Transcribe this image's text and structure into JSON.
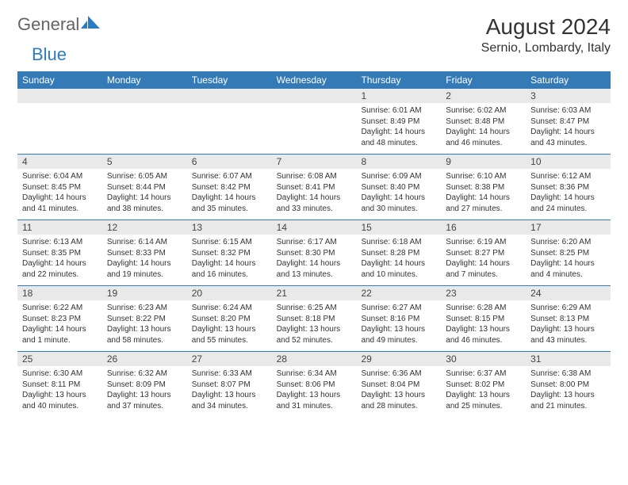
{
  "brand": {
    "word1": "General",
    "word2": "Blue"
  },
  "header": {
    "title": "August 2024",
    "location": "Sernio, Lombardy, Italy"
  },
  "colors": {
    "header_bg": "#337ab7",
    "header_text": "#ffffff",
    "daynum_bg": "#e9e9e9",
    "divider": "#2d7bc0",
    "brand_gray": "#646464",
    "brand_blue": "#2d7bc0"
  },
  "typography": {
    "title_fontsize": 28,
    "location_fontsize": 16,
    "dayheader_fontsize": 12,
    "daynum_fontsize": 12,
    "body_fontsize": 10
  },
  "day_headers": [
    "Sunday",
    "Monday",
    "Tuesday",
    "Wednesday",
    "Thursday",
    "Friday",
    "Saturday"
  ],
  "weeks": [
    [
      {
        "num": "",
        "sunrise": "",
        "sunset": "",
        "daylight": ""
      },
      {
        "num": "",
        "sunrise": "",
        "sunset": "",
        "daylight": ""
      },
      {
        "num": "",
        "sunrise": "",
        "sunset": "",
        "daylight": ""
      },
      {
        "num": "",
        "sunrise": "",
        "sunset": "",
        "daylight": ""
      },
      {
        "num": "1",
        "sunrise": "Sunrise: 6:01 AM",
        "sunset": "Sunset: 8:49 PM",
        "daylight": "Daylight: 14 hours and 48 minutes."
      },
      {
        "num": "2",
        "sunrise": "Sunrise: 6:02 AM",
        "sunset": "Sunset: 8:48 PM",
        "daylight": "Daylight: 14 hours and 46 minutes."
      },
      {
        "num": "3",
        "sunrise": "Sunrise: 6:03 AM",
        "sunset": "Sunset: 8:47 PM",
        "daylight": "Daylight: 14 hours and 43 minutes."
      }
    ],
    [
      {
        "num": "4",
        "sunrise": "Sunrise: 6:04 AM",
        "sunset": "Sunset: 8:45 PM",
        "daylight": "Daylight: 14 hours and 41 minutes."
      },
      {
        "num": "5",
        "sunrise": "Sunrise: 6:05 AM",
        "sunset": "Sunset: 8:44 PM",
        "daylight": "Daylight: 14 hours and 38 minutes."
      },
      {
        "num": "6",
        "sunrise": "Sunrise: 6:07 AM",
        "sunset": "Sunset: 8:42 PM",
        "daylight": "Daylight: 14 hours and 35 minutes."
      },
      {
        "num": "7",
        "sunrise": "Sunrise: 6:08 AM",
        "sunset": "Sunset: 8:41 PM",
        "daylight": "Daylight: 14 hours and 33 minutes."
      },
      {
        "num": "8",
        "sunrise": "Sunrise: 6:09 AM",
        "sunset": "Sunset: 8:40 PM",
        "daylight": "Daylight: 14 hours and 30 minutes."
      },
      {
        "num": "9",
        "sunrise": "Sunrise: 6:10 AM",
        "sunset": "Sunset: 8:38 PM",
        "daylight": "Daylight: 14 hours and 27 minutes."
      },
      {
        "num": "10",
        "sunrise": "Sunrise: 6:12 AM",
        "sunset": "Sunset: 8:36 PM",
        "daylight": "Daylight: 14 hours and 24 minutes."
      }
    ],
    [
      {
        "num": "11",
        "sunrise": "Sunrise: 6:13 AM",
        "sunset": "Sunset: 8:35 PM",
        "daylight": "Daylight: 14 hours and 22 minutes."
      },
      {
        "num": "12",
        "sunrise": "Sunrise: 6:14 AM",
        "sunset": "Sunset: 8:33 PM",
        "daylight": "Daylight: 14 hours and 19 minutes."
      },
      {
        "num": "13",
        "sunrise": "Sunrise: 6:15 AM",
        "sunset": "Sunset: 8:32 PM",
        "daylight": "Daylight: 14 hours and 16 minutes."
      },
      {
        "num": "14",
        "sunrise": "Sunrise: 6:17 AM",
        "sunset": "Sunset: 8:30 PM",
        "daylight": "Daylight: 14 hours and 13 minutes."
      },
      {
        "num": "15",
        "sunrise": "Sunrise: 6:18 AM",
        "sunset": "Sunset: 8:28 PM",
        "daylight": "Daylight: 14 hours and 10 minutes."
      },
      {
        "num": "16",
        "sunrise": "Sunrise: 6:19 AM",
        "sunset": "Sunset: 8:27 PM",
        "daylight": "Daylight: 14 hours and 7 minutes."
      },
      {
        "num": "17",
        "sunrise": "Sunrise: 6:20 AM",
        "sunset": "Sunset: 8:25 PM",
        "daylight": "Daylight: 14 hours and 4 minutes."
      }
    ],
    [
      {
        "num": "18",
        "sunrise": "Sunrise: 6:22 AM",
        "sunset": "Sunset: 8:23 PM",
        "daylight": "Daylight: 14 hours and 1 minute."
      },
      {
        "num": "19",
        "sunrise": "Sunrise: 6:23 AM",
        "sunset": "Sunset: 8:22 PM",
        "daylight": "Daylight: 13 hours and 58 minutes."
      },
      {
        "num": "20",
        "sunrise": "Sunrise: 6:24 AM",
        "sunset": "Sunset: 8:20 PM",
        "daylight": "Daylight: 13 hours and 55 minutes."
      },
      {
        "num": "21",
        "sunrise": "Sunrise: 6:25 AM",
        "sunset": "Sunset: 8:18 PM",
        "daylight": "Daylight: 13 hours and 52 minutes."
      },
      {
        "num": "22",
        "sunrise": "Sunrise: 6:27 AM",
        "sunset": "Sunset: 8:16 PM",
        "daylight": "Daylight: 13 hours and 49 minutes."
      },
      {
        "num": "23",
        "sunrise": "Sunrise: 6:28 AM",
        "sunset": "Sunset: 8:15 PM",
        "daylight": "Daylight: 13 hours and 46 minutes."
      },
      {
        "num": "24",
        "sunrise": "Sunrise: 6:29 AM",
        "sunset": "Sunset: 8:13 PM",
        "daylight": "Daylight: 13 hours and 43 minutes."
      }
    ],
    [
      {
        "num": "25",
        "sunrise": "Sunrise: 6:30 AM",
        "sunset": "Sunset: 8:11 PM",
        "daylight": "Daylight: 13 hours and 40 minutes."
      },
      {
        "num": "26",
        "sunrise": "Sunrise: 6:32 AM",
        "sunset": "Sunset: 8:09 PM",
        "daylight": "Daylight: 13 hours and 37 minutes."
      },
      {
        "num": "27",
        "sunrise": "Sunrise: 6:33 AM",
        "sunset": "Sunset: 8:07 PM",
        "daylight": "Daylight: 13 hours and 34 minutes."
      },
      {
        "num": "28",
        "sunrise": "Sunrise: 6:34 AM",
        "sunset": "Sunset: 8:06 PM",
        "daylight": "Daylight: 13 hours and 31 minutes."
      },
      {
        "num": "29",
        "sunrise": "Sunrise: 6:36 AM",
        "sunset": "Sunset: 8:04 PM",
        "daylight": "Daylight: 13 hours and 28 minutes."
      },
      {
        "num": "30",
        "sunrise": "Sunrise: 6:37 AM",
        "sunset": "Sunset: 8:02 PM",
        "daylight": "Daylight: 13 hours and 25 minutes."
      },
      {
        "num": "31",
        "sunrise": "Sunrise: 6:38 AM",
        "sunset": "Sunset: 8:00 PM",
        "daylight": "Daylight: 13 hours and 21 minutes."
      }
    ]
  ]
}
